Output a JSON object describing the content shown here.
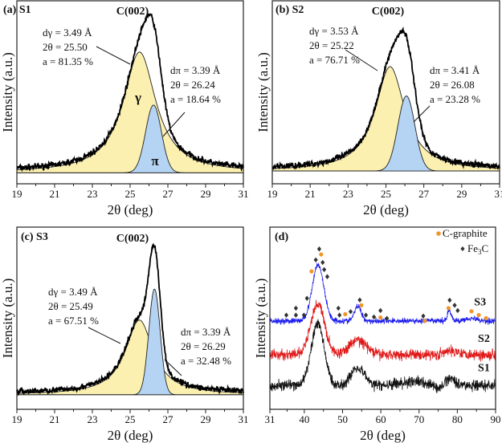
{
  "chart_data": [
    {
      "type": "line",
      "panel": "(a) S1",
      "peak_label": "C(002)",
      "xlabel": "2θ (deg)",
      "ylabel": "Intensity (a.u.)",
      "xlim": [
        19,
        31
      ],
      "xticks": [
        "19",
        "21",
        "23",
        "25",
        "27",
        "29",
        "31"
      ],
      "ylim": [
        0,
        100
      ],
      "baseline": 7,
      "fits": [
        {
          "name": "γ",
          "symbol": "γ",
          "center": 25.5,
          "amplitude": 66,
          "width": 1.05,
          "shape": "lorentzian",
          "color": "#fbf0b0",
          "lines": [
            "dγ = 3.49 Å",
            "2θ = 25.50",
            "a = 81.35 %"
          ]
        },
        {
          "name": "π",
          "symbol": "π",
          "center": 26.24,
          "amplitude": 37,
          "width": 0.42,
          "shape": "gaussian",
          "color": "#b5d3f3",
          "lines": [
            "dπ = 3.39 Å",
            "2θ = 26.24",
            "a =  18.64 %"
          ]
        }
      ]
    },
    {
      "type": "line",
      "panel": "(b) S2",
      "peak_label": "C(002)",
      "xlabel": "2θ (deg)",
      "ylabel": "Intensity (a.u.)",
      "xlim": [
        19,
        31
      ],
      "xticks": [
        "19",
        "21",
        "23",
        "25",
        "27",
        "29",
        "31"
      ],
      "ylim": [
        0,
        100
      ],
      "baseline": 8,
      "fits": [
        {
          "name": "γ",
          "symbol": "",
          "center": 25.22,
          "amplitude": 57,
          "width": 0.95,
          "shape": "lorentzian",
          "color": "#fbf0b0",
          "lines": [
            "dγ = 3.53 Å",
            "2θ = 25.22",
            "a = 76.71 %"
          ]
        },
        {
          "name": "π",
          "symbol": "",
          "center": 26.08,
          "amplitude": 41,
          "width": 0.45,
          "shape": "gaussian",
          "color": "#b5d3f3",
          "lines": [
            "dπ = 3.41 Å",
            "2θ = 26.08",
            "a = 23.28 %"
          ]
        }
      ]
    },
    {
      "type": "line",
      "panel": "(c) S3",
      "peak_label": "C(002)",
      "xlabel": "2θ (deg)",
      "ylabel": "Intensity (a.u.)",
      "xlim": [
        19,
        31
      ],
      "xticks": [
        "19",
        "21",
        "23",
        "25",
        "27",
        "29",
        "31"
      ],
      "ylim": [
        0,
        100
      ],
      "baseline": 9,
      "fits": [
        {
          "name": "γ",
          "symbol": "",
          "center": 25.49,
          "amplitude": 41,
          "width": 0.9,
          "shape": "lorentzian",
          "color": "#fbf0b0",
          "lines": [
            "dγ = 3.49 Å",
            "2θ = 25.49",
            "a = 67.51 %"
          ]
        },
        {
          "name": "π",
          "symbol": "",
          "center": 26.29,
          "amplitude": 58,
          "width": 0.3,
          "shape": "gaussian",
          "color": "#b5d3f3",
          "lines": [
            "dπ = 3.39 Å",
            "2θ = 26.29",
            "a = 32.48 %"
          ]
        }
      ]
    },
    {
      "type": "line",
      "panel": "(d)",
      "xlabel": "2θ (deg)",
      "ylabel": "Intensity (a.u.)",
      "xlim": [
        31,
        90
      ],
      "xticks": [
        "31",
        "40",
        "50",
        "60",
        "70",
        "80",
        "90"
      ],
      "ylim": [
        0,
        100
      ],
      "legend": {
        "position": "top-right",
        "entries": [
          {
            "label": "C-graphite",
            "marker": "circle",
            "color": "#f0962a"
          },
          {
            "label": "Fe3C",
            "label_main": "Fe",
            "label_sub": "3",
            "label_tail": "C",
            "marker": "diamond",
            "color": "#333333"
          }
        ]
      },
      "series": [
        {
          "name": "S3",
          "color": "#1a1aee",
          "baseline": 48.5,
          "peaks": [
            [
              43.6,
              31,
              1.5
            ],
            [
              54.0,
              8,
              0.9
            ],
            [
              77.9,
              6,
              0.5
            ],
            [
              83.5,
              1.5,
              1.5
            ]
          ]
        },
        {
          "name": "S2",
          "color": "#e01a1a",
          "baseline": 30,
          "peaks": [
            [
              43.5,
              28,
              1.8
            ],
            [
              54.0,
              8,
              2.2
            ],
            [
              79,
              2,
              2
            ]
          ]
        },
        {
          "name": "S1",
          "color": "#111111",
          "baseline": 13,
          "peaks": [
            [
              43.5,
              34,
              1.7
            ],
            [
              54.0,
              10,
              1.8
            ],
            [
              78.2,
              4,
              1.4
            ],
            [
              69,
              2,
              4
            ]
          ]
        }
      ],
      "markers_graphite": [
        [
          41.9,
          75.7
        ],
        [
          44.4,
          85
        ],
        [
          50.7,
          52.2
        ],
        [
          54.9,
          57.1
        ],
        [
          59.9,
          50.4
        ],
        [
          71.5,
          48.6
        ],
        [
          77.7,
          55.5
        ],
        [
          83.7,
          53.8
        ],
        [
          85.6,
          51.7
        ],
        [
          87.5,
          50
        ]
      ],
      "markers_fe3c": [
        [
          35.3,
          51.7
        ],
        [
          37.8,
          55.5
        ],
        [
          37.8,
          51.7
        ],
        [
          39.9,
          51.7
        ],
        [
          40.7,
          60.9
        ],
        [
          43.0,
          82
        ],
        [
          43.9,
          88
        ],
        [
          44.8,
          80.6
        ],
        [
          45.2,
          76.7
        ],
        [
          46.0,
          72.8
        ],
        [
          48.9,
          55.5
        ],
        [
          49.2,
          51.7
        ],
        [
          52.1,
          53.6
        ],
        [
          54.5,
          60
        ],
        [
          56.1,
          51.7
        ],
        [
          58.2,
          50.7
        ],
        [
          59.9,
          54.2
        ],
        [
          61.6,
          49.9
        ],
        [
          71.1,
          51.2
        ],
        [
          78.0,
          59.9
        ],
        [
          79.3,
          57.1
        ],
        [
          80.1,
          54.2
        ]
      ]
    }
  ]
}
